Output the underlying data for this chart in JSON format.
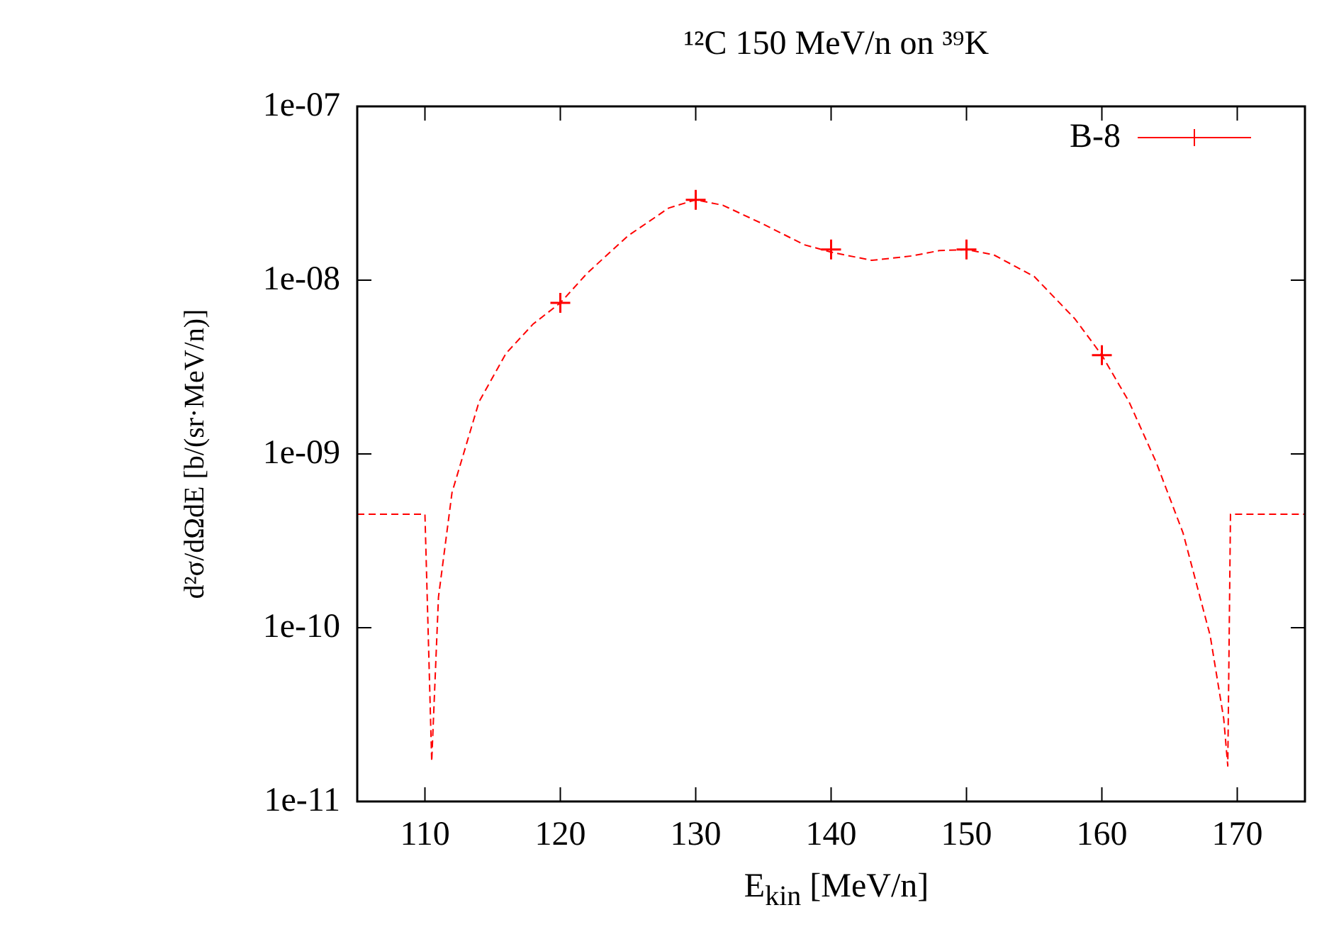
{
  "chart_data": {
    "type": "scatter",
    "title": "¹²C 150 MeV/n on ³⁹K",
    "xlabel": "E$_{kin}$ [MeV/n]",
    "ylabel": "d²σ/dΩdE [b/(sr·MeV/n)]",
    "log": "y",
    "xlim": [
      105,
      175
    ],
    "xticks": [
      110,
      120,
      130,
      140,
      150,
      160,
      170
    ],
    "ylim": [
      1e-11,
      1e-07
    ],
    "yticks": [
      {
        "value": 1e-11,
        "label": "1e-11"
      },
      {
        "value": 1e-10,
        "label": "1e-10"
      },
      {
        "value": 1e-09,
        "label": "1e-09"
      },
      {
        "value": 1e-08,
        "label": "1e-08"
      },
      {
        "value": 1e-07,
        "label": "1e-07"
      }
    ],
    "grid": false,
    "legend": "top right",
    "marker": "cross",
    "series": [
      {
        "name": "B-8",
        "color": "#ff0000",
        "x": [
          120,
          130,
          140,
          150,
          160
        ],
        "values": [
          7.4e-09,
          2.9e-08,
          1.5e-08,
          1.5e-08,
          3.7e-09
        ]
      },
      {
        "type": "line",
        "line_style": "dashed",
        "marker": "none",
        "color": "#ff0000",
        "x": [
          105,
          110,
          110.5,
          111,
          112,
          114,
          116,
          118,
          120,
          122,
          125,
          128,
          130,
          132,
          135,
          138,
          140,
          143,
          146,
          148,
          150,
          152,
          155,
          158,
          160,
          162,
          164,
          166,
          168,
          169,
          169.3,
          169.5,
          175
        ],
        "values": [
          4.5e-10,
          4.5e-10,
          1.7e-11,
          1.5e-10,
          6e-10,
          2e-09,
          3.8e-09,
          5.6e-09,
          7.4e-09,
          1.1e-08,
          1.8e-08,
          2.6e-08,
          2.9e-08,
          2.7e-08,
          2.1e-08,
          1.6e-08,
          1.45e-08,
          1.3e-08,
          1.38e-08,
          1.48e-08,
          1.5e-08,
          1.4e-08,
          1.05e-08,
          6e-09,
          3.7e-09,
          2e-09,
          9e-10,
          3.5e-10,
          9e-11,
          3e-11,
          1.6e-11,
          4.5e-10,
          4.5e-10
        ]
      }
    ]
  }
}
